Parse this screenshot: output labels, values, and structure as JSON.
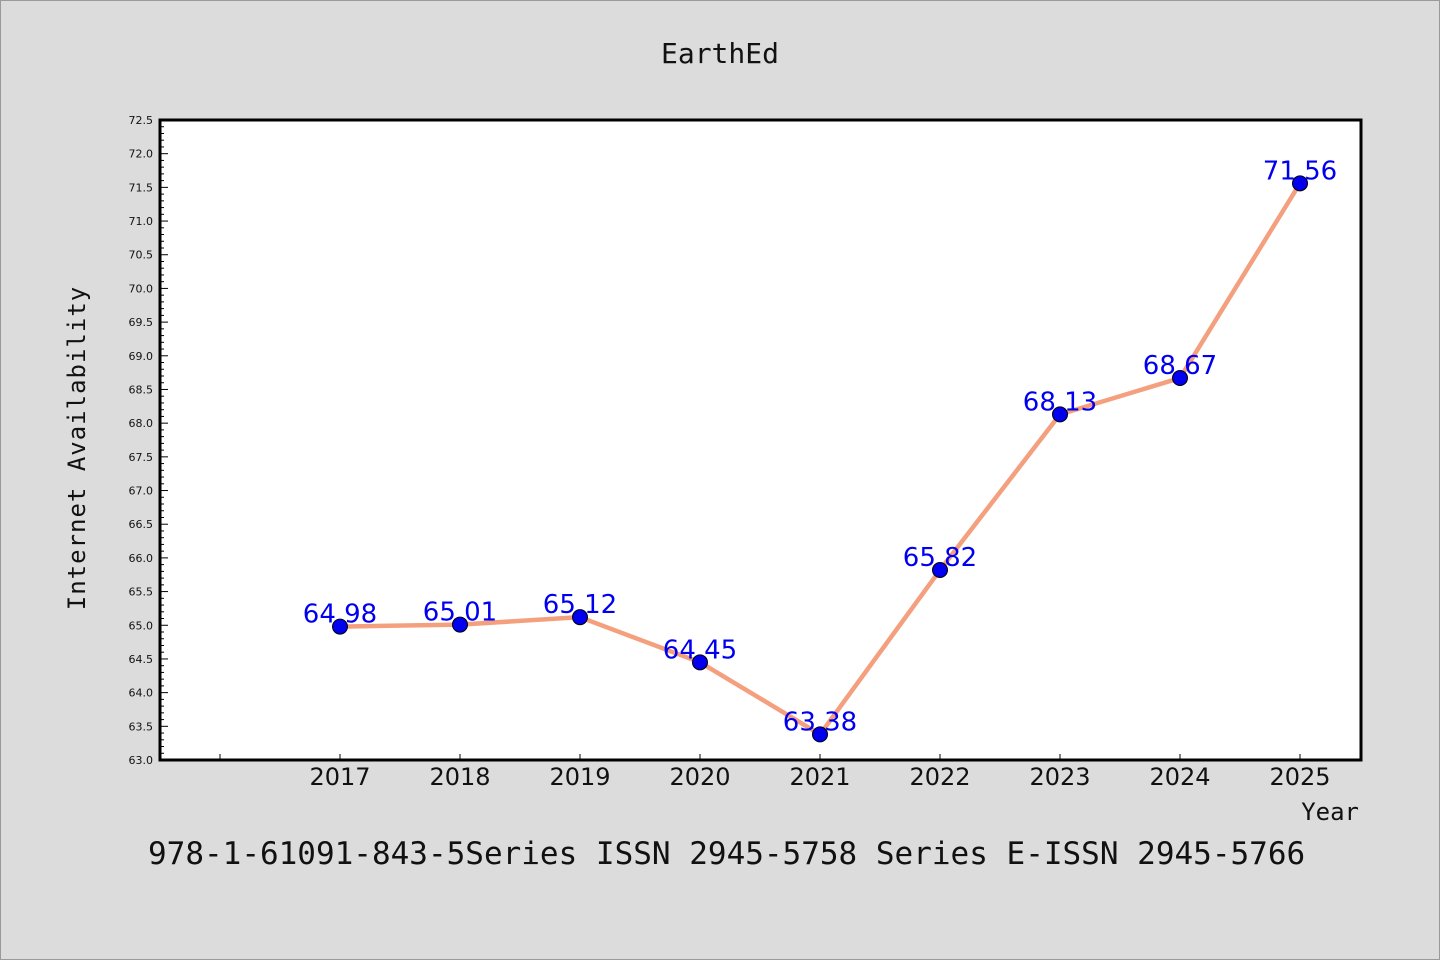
{
  "chart_data": {
    "type": "line",
    "title": "EarthEd",
    "xlabel": "Year",
    "ylabel": "Internet Availability",
    "categories": [
      "2017",
      "2018",
      "2019",
      "2020",
      "2021",
      "2022",
      "2023",
      "2024",
      "2025"
    ],
    "series": [
      {
        "values": [
          64.98,
          65.01,
          65.12,
          64.45,
          63.38,
          65.82,
          68.13,
          68.67,
          71.56
        ]
      }
    ],
    "data_labels": [
      "64.98",
      "65.01",
      "65.12",
      "64.45",
      "63.38",
      "65.82",
      "68.13",
      "68.67",
      "71.56"
    ],
    "ylim": [
      63.0,
      72.5
    ],
    "ytick_step": 0.5,
    "grid": false,
    "colors": {
      "line": "#f4a07e",
      "marker": "#0000ee",
      "label": "#0000ee",
      "background": "#dcdcdc",
      "plot_background": "#ffffff"
    }
  },
  "footer": "978-1-61091-843-5Series ISSN 2945-5758 Series E-ISSN 2945-5766"
}
